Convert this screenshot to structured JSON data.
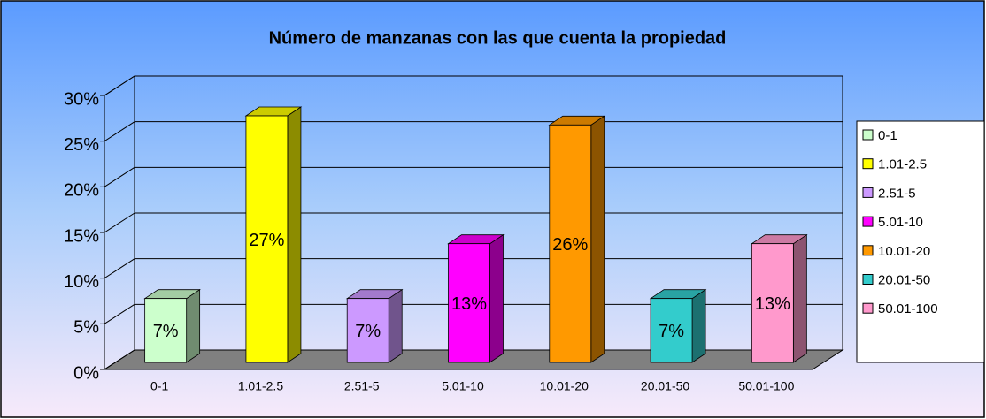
{
  "chart_data": {
    "type": "bar3d",
    "title": "Número de manzanas con las que cuenta la propiedad",
    "categories": [
      "0-1",
      "1.01-2.5",
      "2.51-5",
      "5.01-10",
      "10.01-20",
      "20.01-50",
      "50.01-100"
    ],
    "values": [
      7,
      27,
      7,
      13,
      26,
      7,
      13
    ],
    "value_labels": [
      "7%",
      "27%",
      "7%",
      "13%",
      "26%",
      "7%",
      "13%"
    ],
    "colors": [
      "#ccffcc",
      "#ffff00",
      "#cc99ff",
      "#ff00ff",
      "#ff9900",
      "#33cccc",
      "#ff99cc"
    ],
    "ylim": [
      0,
      30
    ],
    "yticks": [
      {
        "value": 0,
        "label": "0%"
      },
      {
        "value": 5,
        "label": "5%"
      },
      {
        "value": 10,
        "label": "10%"
      },
      {
        "value": 15,
        "label": "15%"
      },
      {
        "value": 20,
        "label": "20%"
      },
      {
        "value": 25,
        "label": "25%"
      },
      {
        "value": 30,
        "label": "30%"
      }
    ],
    "grid": true,
    "legend": "right"
  }
}
